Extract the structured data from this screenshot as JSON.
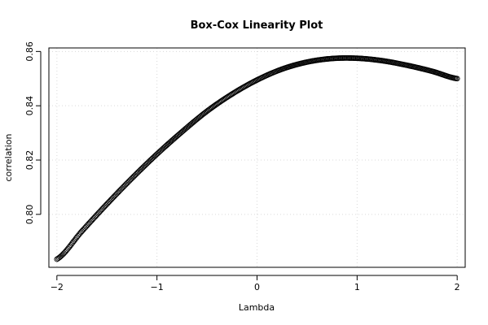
{
  "chart_data": {
    "type": "scatter",
    "title": "Box-Cox Linearity Plot",
    "xlabel": "Lambda",
    "ylabel": "correlation",
    "xlim": [
      -2.08,
      2.08
    ],
    "ylim": [
      0.7805,
      0.8613
    ],
    "x_ticks": [
      -2,
      -1,
      0,
      1,
      2
    ],
    "x_tick_labels": [
      "−2",
      "−1",
      "0",
      "1",
      "2"
    ],
    "y_ticks": [
      0.8,
      0.82,
      0.84,
      0.86
    ],
    "y_tick_labels": [
      "0.80",
      "0.82",
      "0.84",
      "0.86"
    ],
    "grid": true,
    "point_count": 401,
    "x_range": [
      -2,
      2
    ],
    "series": [
      {
        "x": [
          -2.0,
          -1.75,
          -1.5,
          -1.25,
          -1.0,
          -0.75,
          -0.5,
          -0.25,
          0.0,
          0.25,
          0.5,
          0.75,
          1.0,
          1.25,
          1.5,
          1.75,
          2.0
        ],
        "values": [
          0.7835,
          0.7938,
          0.8038,
          0.8133,
          0.8222,
          0.8304,
          0.838,
          0.8443,
          0.8495,
          0.8535,
          0.8561,
          0.8574,
          0.8575,
          0.8566,
          0.8549,
          0.8527,
          0.85
        ]
      }
    ]
  }
}
